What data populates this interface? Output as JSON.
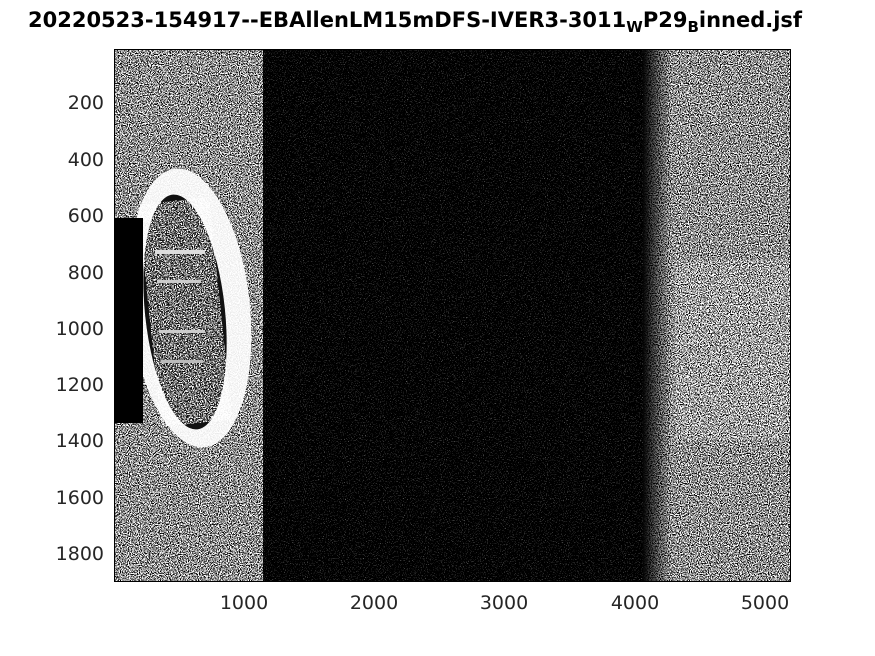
{
  "figure": {
    "title_main": "20220523-154917--EBAllenLM15mDFS-IVER3-3011",
    "title_sub1": "W",
    "title_mid": "P29",
    "title_sub2": "B",
    "title_end": "inned.jsf"
  },
  "axes": {
    "x_ticks": [
      "1000",
      "2000",
      "3000",
      "4000",
      "5000"
    ],
    "y_ticks": [
      "200",
      "400",
      "600",
      "800",
      "1000",
      "1200",
      "1400",
      "1600",
      "1800"
    ],
    "x_range": [
      0,
      5200
    ],
    "y_range": [
      0,
      1900
    ],
    "background_color": "#000000",
    "foreground_color": "#ffffff"
  },
  "image": {
    "description_type": "side-scan sonar intensity image, grayscale"
  }
}
